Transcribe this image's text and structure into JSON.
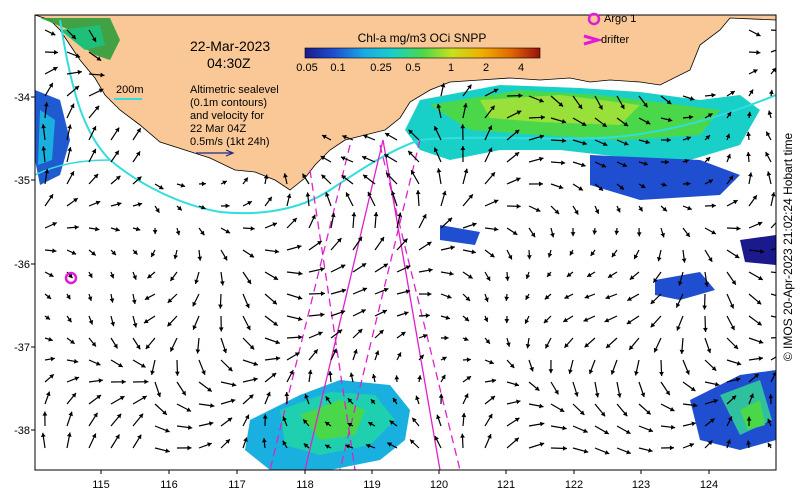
{
  "title": {
    "date": "22-Mar-2023",
    "time": "04:30Z"
  },
  "colorbar": {
    "label": "Chl-a mg/m3 OCi SNPP",
    "ticks": [
      "0.05",
      "0.1",
      "0.25",
      "0.5",
      "1",
      "2",
      "4"
    ],
    "colors": [
      "#1a1a8c",
      "#1f4fd0",
      "#1aa8e6",
      "#19d0c8",
      "#4ad84a",
      "#c8e020",
      "#f0b000",
      "#e06a00",
      "#9a0f0f"
    ]
  },
  "legend": {
    "argo_label": "Argo 1",
    "drifter_label": "drifter",
    "argo_color": "#e01ad8",
    "drifter_color": "#e01ad8",
    "contour_label": "200m",
    "contour_color": "#33dddd",
    "description_lines": [
      "Altimetric sealevel",
      "(0.1m contours)",
      "and velocity for",
      "22 Mar 04Z",
      "0.5m/s (1kt 24h)"
    ]
  },
  "axes": {
    "x_ticks": [
      "115",
      "116",
      "117",
      "118",
      "119",
      "120",
      "121",
      "122",
      "123",
      "124"
    ],
    "y_ticks": [
      "-34",
      "-35",
      "-36",
      "-37",
      "-38"
    ]
  },
  "credit": "© IMOS 20-Apr-2023 21:02:24 Hobart time",
  "colors": {
    "land": "#f9c896",
    "ocean": "#ffffff",
    "track": "#dd22cc"
  },
  "markers": {
    "argo_float": {
      "lon": 114.55,
      "lat": -36.18
    }
  }
}
